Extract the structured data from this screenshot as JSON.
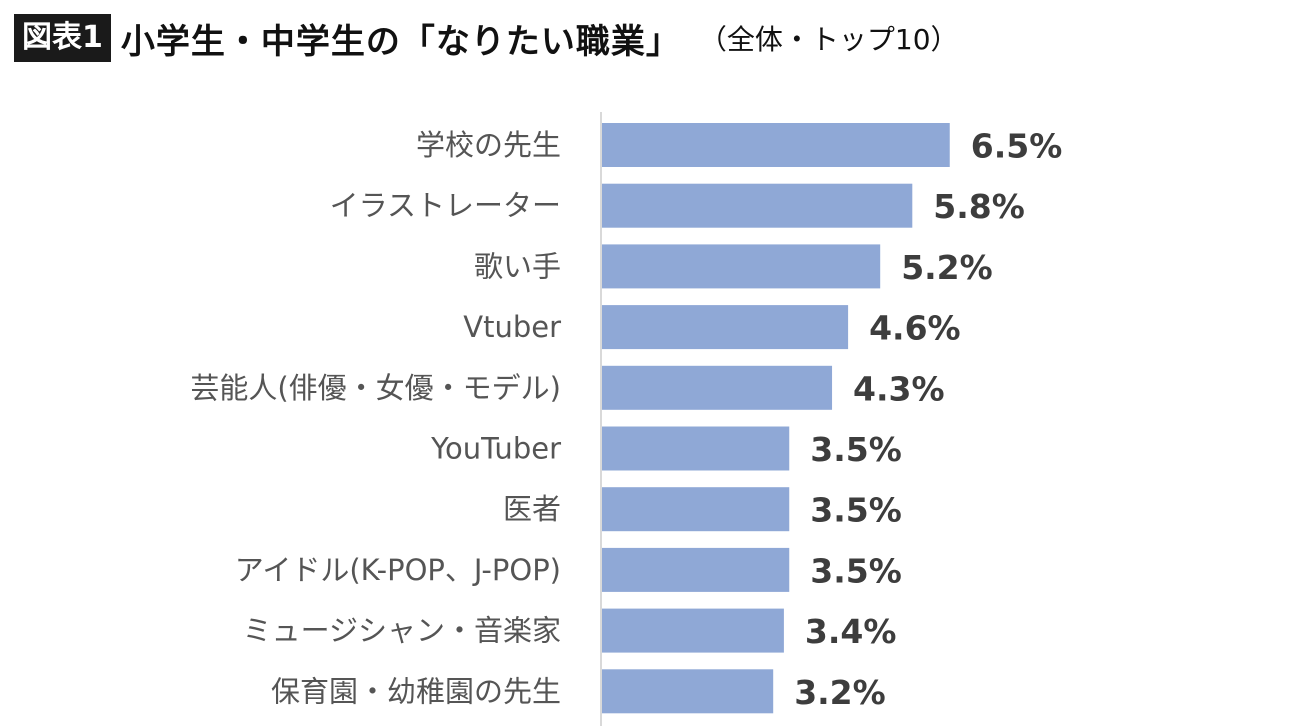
{
  "header": {
    "figure_tag": "図表1",
    "title": "小学生・中学生の「なりたい職業」",
    "subtitle": "（全体・トップ10）"
  },
  "chart_data": {
    "type": "bar",
    "orientation": "horizontal",
    "title": "小学生・中学生の「なりたい職業」（全体・トップ10）",
    "categories": [
      "学校の先生",
      "イラストレーター",
      "歌い手",
      "Vtuber",
      "芸能人(俳優・女優・モデル)",
      "YouTuber",
      "医者",
      "アイドル(K-POP、J-POP)",
      "ミュージシャン・音楽家",
      "保育園・幼稚園の先生"
    ],
    "values": [
      6.5,
      5.8,
      5.2,
      4.6,
      4.3,
      3.5,
      3.5,
      3.5,
      3.4,
      3.2
    ],
    "value_labels": [
      "6.5%",
      "5.8%",
      "5.2%",
      "4.6%",
      "4.3%",
      "3.5%",
      "3.5%",
      "3.5%",
      "3.4%",
      "3.2%"
    ],
    "unit": "%",
    "bar_color": "#8fa8d6",
    "axis_line_color": "#d9d9d9",
    "grid": false,
    "legend": "none"
  }
}
